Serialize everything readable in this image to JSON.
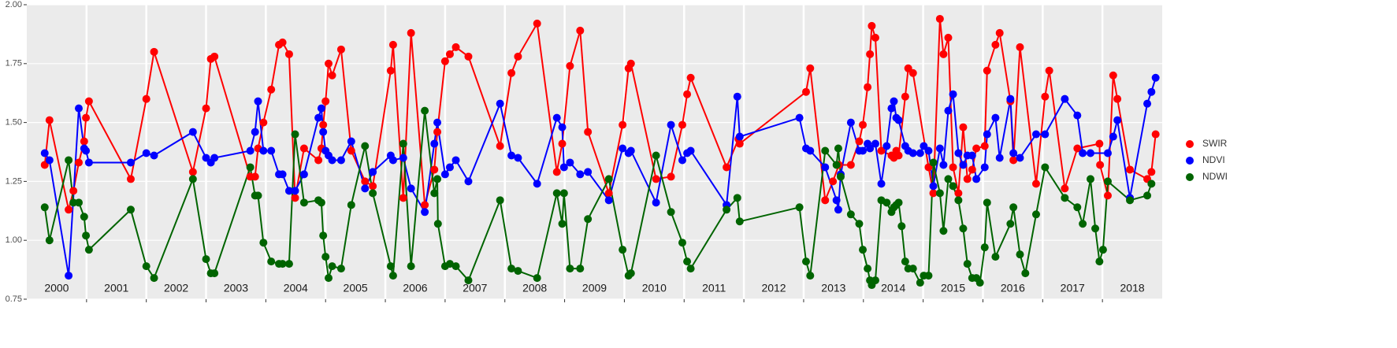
{
  "chart_data": {
    "type": "line",
    "xlim": [
      2000,
      2019
    ],
    "xticks": [
      2001,
      2002,
      2003,
      2004,
      2005,
      2006,
      2007,
      2008,
      2009,
      2010,
      2011,
      2012,
      2013,
      2014,
      2015,
      2016,
      2017,
      2018
    ],
    "year_labels": [
      "2000",
      "2001",
      "2002",
      "2003",
      "2004",
      "2005",
      "2006",
      "2007",
      "2008",
      "2009",
      "2010",
      "2011",
      "2012",
      "2013",
      "2014",
      "2015",
      "2016",
      "2017",
      "2018"
    ],
    "ylim": [
      0.75,
      2.0
    ],
    "yticks": [
      0.75,
      {
        "value": 1.0,
        "label": "1.00"
      },
      1.25,
      {
        "value": 1.5,
        "label": "1.50"
      },
      1.75,
      {
        "value": 2.0,
        "label": "2.00"
      }
    ],
    "grid": true,
    "legend": "right",
    "series": [
      {
        "name": "SWIR",
        "color": "#ff0000",
        "x": [
          2000.3,
          2000.38,
          2000.7,
          2000.78,
          2000.87,
          2000.96,
          2000.99,
          2001.04,
          2001.74,
          2002.0,
          2002.13,
          2002.78,
          2003.0,
          2003.08,
          2003.14,
          2003.74,
          2003.82,
          2003.87,
          2003.96,
          2004.09,
          2004.22,
          2004.28,
          2004.39,
          2004.49,
          2004.64,
          2004.88,
          2004.93,
          2004.96,
          2005.0,
          2005.05,
          2005.11,
          2005.26,
          2005.43,
          2005.66,
          2005.79,
          2006.09,
          2006.13,
          2006.3,
          2006.43,
          2006.66,
          2006.82,
          2006.87,
          2007.0,
          2007.08,
          2007.18,
          2007.39,
          2007.92,
          2008.11,
          2008.22,
          2008.54,
          2008.87,
          2008.96,
          2009.09,
          2009.26,
          2009.39,
          2009.74,
          2009.97,
          2010.07,
          2010.11,
          2010.53,
          2010.78,
          2010.97,
          2011.05,
          2011.11,
          2011.71,
          2011.91,
          2011.93,
          2013.04,
          2013.11,
          2013.36,
          2013.49,
          2013.59,
          2013.79,
          2013.93,
          2013.99,
          2014.07,
          2014.11,
          2014.14,
          2014.2,
          2014.3,
          2014.47,
          2014.51,
          2014.55,
          2014.59,
          2014.7,
          2014.75,
          2014.83,
          2015.09,
          2015.17,
          2015.28,
          2015.34,
          2015.42,
          2015.5,
          2015.59,
          2015.67,
          2015.74,
          2015.82,
          2015.89,
          2016.03,
          2016.07,
          2016.21,
          2016.28,
          2016.46,
          2016.51,
          2016.62,
          2016.89,
          2017.04,
          2017.11,
          2017.37,
          2017.58,
          2017.95,
          2017.96,
          2018.09,
          2018.18,
          2018.25,
          2018.46,
          2018.75,
          2018.82,
          2018.89
        ],
        "values": [
          1.32,
          1.51,
          1.13,
          1.21,
          1.33,
          1.42,
          1.52,
          1.59,
          1.26,
          1.6,
          1.8,
          1.29,
          1.56,
          1.77,
          1.78,
          1.27,
          1.27,
          1.39,
          1.5,
          1.64,
          1.83,
          1.84,
          1.79,
          1.18,
          1.39,
          1.34,
          1.39,
          1.49,
          1.59,
          1.75,
          1.7,
          1.81,
          1.38,
          1.25,
          1.23,
          1.72,
          1.83,
          1.18,
          1.88,
          1.15,
          1.3,
          1.46,
          1.76,
          1.79,
          1.82,
          1.78,
          1.4,
          1.71,
          1.78,
          1.92,
          1.29,
          1.41,
          1.74,
          1.89,
          1.46,
          1.2,
          1.49,
          1.73,
          1.75,
          1.26,
          1.27,
          1.49,
          1.62,
          1.69,
          1.31,
          1.43,
          1.41,
          1.63,
          1.73,
          1.17,
          1.25,
          1.32,
          1.32,
          1.42,
          1.49,
          1.65,
          1.79,
          1.91,
          1.86,
          1.38,
          1.36,
          1.35,
          1.38,
          1.36,
          1.61,
          1.73,
          1.71,
          1.31,
          1.2,
          1.94,
          1.79,
          1.86,
          1.31,
          1.2,
          1.48,
          1.26,
          1.3,
          1.39,
          1.4,
          1.72,
          1.83,
          1.88,
          1.59,
          1.34,
          1.82,
          1.24,
          1.61,
          1.72,
          1.22,
          1.39,
          1.41,
          1.32,
          1.19,
          1.7,
          1.6,
          1.3,
          1.26,
          1.29,
          1.45
        ]
      },
      {
        "name": "NDVI",
        "color": "#0000ff",
        "x": [
          2000.3,
          2000.38,
          2000.7,
          2000.87,
          2000.96,
          2000.99,
          2001.04,
          2001.74,
          2002.0,
          2002.13,
          2002.78,
          2003.0,
          2003.08,
          2003.14,
          2003.74,
          2003.82,
          2003.87,
          2003.96,
          2004.09,
          2004.22,
          2004.28,
          2004.39,
          2004.49,
          2004.64,
          2004.88,
          2004.93,
          2004.96,
          2005.0,
          2005.05,
          2005.11,
          2005.26,
          2005.43,
          2005.66,
          2005.79,
          2006.09,
          2006.13,
          2006.3,
          2006.43,
          2006.66,
          2006.82,
          2006.87,
          2007.0,
          2007.08,
          2007.18,
          2007.39,
          2007.92,
          2008.11,
          2008.22,
          2008.54,
          2008.87,
          2008.96,
          2008.99,
          2009.09,
          2009.26,
          2009.39,
          2009.74,
          2009.97,
          2010.07,
          2010.11,
          2010.53,
          2010.78,
          2010.97,
          2011.05,
          2011.11,
          2011.71,
          2011.89,
          2011.93,
          2012.93,
          2013.04,
          2013.11,
          2013.36,
          2013.55,
          2013.58,
          2013.62,
          2013.79,
          2013.93,
          2013.99,
          2014.07,
          2014.11,
          2014.2,
          2014.3,
          2014.39,
          2014.47,
          2014.51,
          2014.55,
          2014.59,
          2014.7,
          2014.75,
          2014.83,
          2014.95,
          2015.01,
          2015.09,
          2015.17,
          2015.28,
          2015.34,
          2015.42,
          2015.5,
          2015.59,
          2015.67,
          2015.74,
          2015.82,
          2015.89,
          2016.03,
          2016.07,
          2016.21,
          2016.28,
          2016.46,
          2016.51,
          2016.62,
          2016.89,
          2017.04,
          2017.37,
          2017.58,
          2017.67,
          2017.8,
          2018.09,
          2018.18,
          2018.25,
          2018.46,
          2018.75,
          2018.82,
          2018.89
        ],
        "values": [
          1.37,
          1.34,
          0.85,
          1.56,
          1.39,
          1.38,
          1.33,
          1.33,
          1.37,
          1.36,
          1.46,
          1.35,
          1.33,
          1.35,
          1.38,
          1.46,
          1.59,
          1.38,
          1.38,
          1.28,
          1.28,
          1.21,
          1.21,
          1.28,
          1.52,
          1.56,
          1.46,
          1.38,
          1.36,
          1.34,
          1.34,
          1.42,
          1.22,
          1.29,
          1.36,
          1.34,
          1.35,
          1.22,
          1.12,
          1.41,
          1.5,
          1.28,
          1.31,
          1.34,
          1.25,
          1.58,
          1.36,
          1.35,
          1.24,
          1.52,
          1.48,
          1.31,
          1.33,
          1.28,
          1.29,
          1.17,
          1.39,
          1.37,
          1.38,
          1.16,
          1.49,
          1.34,
          1.37,
          1.38,
          1.15,
          1.61,
          1.44,
          1.52,
          1.39,
          1.38,
          1.31,
          1.17,
          1.13,
          1.28,
          1.5,
          1.38,
          1.38,
          1.41,
          1.39,
          1.41,
          1.24,
          1.4,
          1.56,
          1.59,
          1.52,
          1.51,
          1.4,
          1.38,
          1.37,
          1.37,
          1.4,
          1.38,
          1.23,
          1.39,
          1.32,
          1.55,
          1.62,
          1.37,
          1.32,
          1.36,
          1.36,
          1.26,
          1.31,
          1.45,
          1.52,
          1.35,
          1.6,
          1.37,
          1.35,
          1.45,
          1.45,
          1.6,
          1.53,
          1.37,
          1.37,
          1.37,
          1.44,
          1.51,
          1.18,
          1.58,
          1.63,
          1.69
        ]
      },
      {
        "name": "NDWI",
        "color": "#006400",
        "x": [
          2000.3,
          2000.38,
          2000.7,
          2000.78,
          2000.87,
          2000.96,
          2000.99,
          2001.04,
          2001.74,
          2002.0,
          2002.13,
          2002.78,
          2003.0,
          2003.08,
          2003.14,
          2003.74,
          2003.82,
          2003.87,
          2003.96,
          2004.09,
          2004.22,
          2004.28,
          2004.39,
          2004.49,
          2004.64,
          2004.88,
          2004.93,
          2004.96,
          2005.0,
          2005.05,
          2005.11,
          2005.26,
          2005.43,
          2005.66,
          2005.79,
          2006.09,
          2006.13,
          2006.3,
          2006.43,
          2006.66,
          2006.82,
          2006.87,
          2006.88,
          2007.0,
          2007.08,
          2007.18,
          2007.39,
          2007.92,
          2008.11,
          2008.22,
          2008.54,
          2008.87,
          2008.96,
          2008.99,
          2009.09,
          2009.26,
          2009.39,
          2009.74,
          2009.97,
          2010.07,
          2010.11,
          2010.53,
          2010.78,
          2010.97,
          2011.05,
          2011.11,
          2011.71,
          2011.89,
          2011.93,
          2012.93,
          2013.04,
          2013.11,
          2013.36,
          2013.55,
          2013.58,
          2013.62,
          2013.79,
          2013.93,
          2013.99,
          2014.07,
          2014.11,
          2014.14,
          2014.2,
          2014.3,
          2014.39,
          2014.47,
          2014.51,
          2014.55,
          2014.59,
          2014.64,
          2014.7,
          2014.75,
          2014.83,
          2014.95,
          2015.01,
          2015.09,
          2015.17,
          2015.28,
          2015.34,
          2015.42,
          2015.5,
          2015.59,
          2015.67,
          2015.74,
          2015.82,
          2015.89,
          2015.95,
          2016.03,
          2016.07,
          2016.21,
          2016.46,
          2016.51,
          2016.62,
          2016.71,
          2016.89,
          2017.04,
          2017.37,
          2017.58,
          2017.67,
          2017.8,
          2017.88,
          2017.95,
          2018.01,
          2018.09,
          2018.46,
          2018.75,
          2018.82
        ],
        "values": [
          1.14,
          1.0,
          1.34,
          1.16,
          1.16,
          1.1,
          1.02,
          0.96,
          1.13,
          0.89,
          0.84,
          1.26,
          0.92,
          0.86,
          0.86,
          1.31,
          1.19,
          1.19,
          0.99,
          0.91,
          0.9,
          0.9,
          0.9,
          1.45,
          1.16,
          1.17,
          1.16,
          1.02,
          0.93,
          0.84,
          0.89,
          0.88,
          1.15,
          1.4,
          1.2,
          0.89,
          0.85,
          1.41,
          0.89,
          1.55,
          1.2,
          1.26,
          1.07,
          0.89,
          0.9,
          0.89,
          0.83,
          1.17,
          0.88,
          0.87,
          0.84,
          1.2,
          1.07,
          1.2,
          0.88,
          0.88,
          1.09,
          1.26,
          0.96,
          0.85,
          0.86,
          1.36,
          1.12,
          0.99,
          0.91,
          0.88,
          1.13,
          1.18,
          1.08,
          1.14,
          0.91,
          0.85,
          1.38,
          1.32,
          1.39,
          1.27,
          1.11,
          1.07,
          0.96,
          0.88,
          0.83,
          0.81,
          0.83,
          1.17,
          1.16,
          1.12,
          1.14,
          1.15,
          1.16,
          1.06,
          0.91,
          0.88,
          0.88,
          0.82,
          0.85,
          0.85,
          1.33,
          1.2,
          1.04,
          1.26,
          1.23,
          1.17,
          1.05,
          0.9,
          0.84,
          0.84,
          0.82,
          0.97,
          1.16,
          0.93,
          1.07,
          1.14,
          0.94,
          0.86,
          1.11,
          1.31,
          1.18,
          1.14,
          1.07,
          1.26,
          1.05,
          0.91,
          0.96,
          1.25,
          1.17,
          1.19,
          1.24
        ]
      }
    ]
  }
}
